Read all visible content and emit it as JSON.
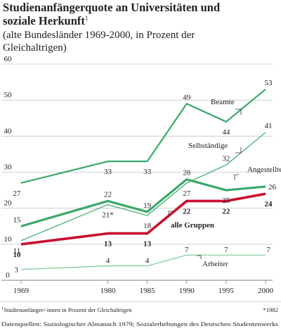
{
  "chart_data": {
    "type": "line",
    "title": [
      "Studienanfängerquote an Universitäten und",
      "soziale Herkunft"
    ],
    "title_footnote_mark": "1",
    "subtitle": [
      "(alte Bundesländer 1969-2000, in Prozent der",
      "Gleichaltrigen)"
    ],
    "x": [
      1969,
      1980,
      1985,
      1990,
      1995,
      2000
    ],
    "xlim": [
      1969,
      2000
    ],
    "xticks": [
      1969,
      1980,
      1985,
      1990,
      1995,
      2000
    ],
    "ylim": [
      0,
      60
    ],
    "yticks": [
      0,
      10,
      20,
      30,
      40,
      50,
      60
    ],
    "grid": true,
    "series": [
      {
        "name": "Beamte",
        "color": "#3aa86a",
        "values": [
          27,
          33,
          33,
          49,
          44,
          53
        ]
      },
      {
        "name": "Selbständige",
        "color": "#3aa86a",
        "values": [
          11,
          21,
          18,
          27,
          32,
          41
        ],
        "value_labels": [
          "11",
          "21*",
          "18",
          "27",
          "32",
          "41"
        ]
      },
      {
        "name": "Angestellte",
        "color": "#3aa86a",
        "values": [
          15,
          22,
          19,
          28,
          25,
          26
        ]
      },
      {
        "name": "alle Gruppen",
        "color": "#c8102e",
        "values": [
          10,
          13,
          13,
          22,
          22,
          24
        ]
      },
      {
        "name": "Arbeiter",
        "color": "#7cc896",
        "values": [
          3,
          4,
          4,
          7,
          7,
          7
        ]
      }
    ],
    "footnotes": {
      "mark": "1",
      "text": "Studienanfänger/-innen in Prozent der Gleichaltrigen",
      "asterisk": "*1982"
    },
    "source": "Datenquellen: Soziologischer Almanach 1979; Sozialerhebungen des Deutschen Studentenwerks"
  }
}
